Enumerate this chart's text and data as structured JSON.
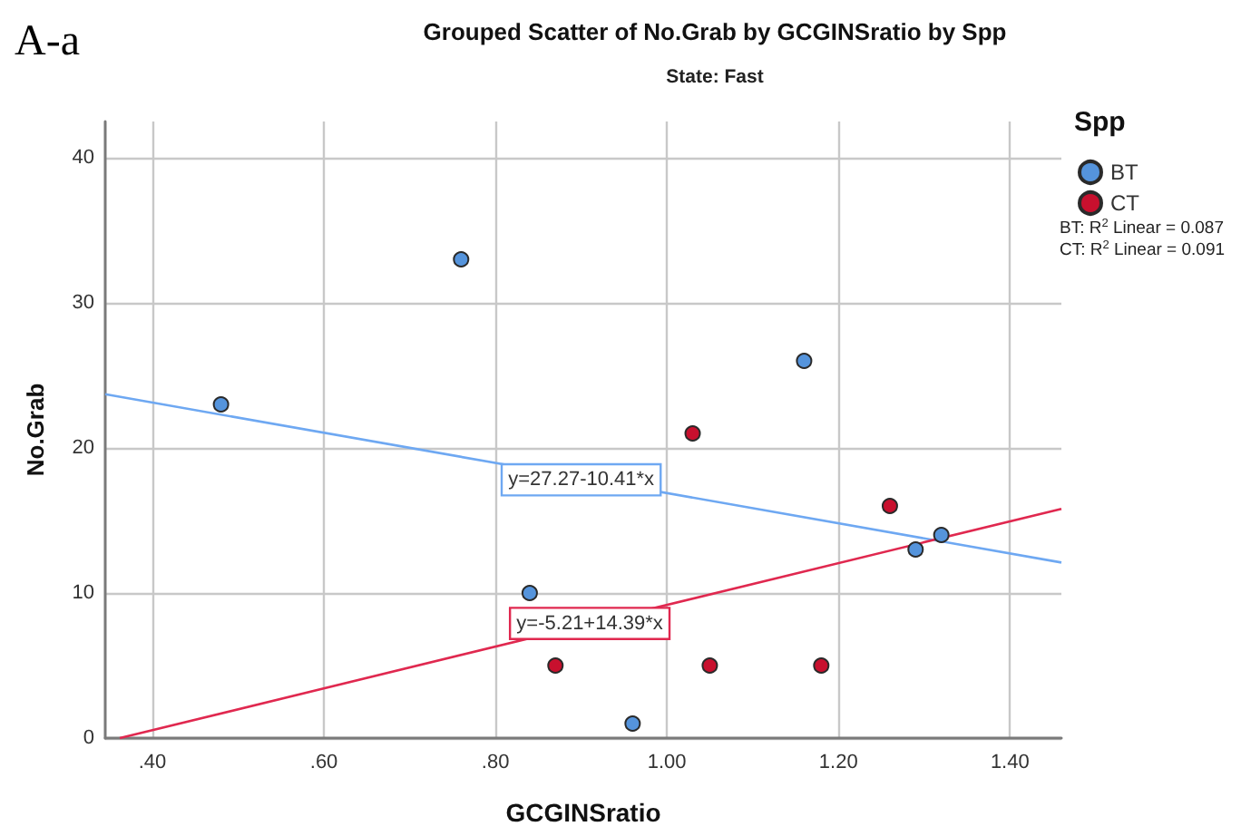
{
  "chart_data": {
    "type": "scatter",
    "title": "Grouped Scatter of No.Grab by GCGINSratio by Spp",
    "subtitle": "State: Fast",
    "xlabel": "GCGINSratio",
    "ylabel": "No.Grab",
    "legend_title": "Spp",
    "series": [
      {
        "name": "BT",
        "color": "#5594dc",
        "x": [
          0.48,
          0.76,
          0.84,
          0.96,
          1.16,
          1.29,
          1.32
        ],
        "values": [
          23,
          33,
          10,
          1,
          26,
          13,
          14
        ]
      },
      {
        "name": "CT",
        "color": "#c8102e",
        "x": [
          0.87,
          1.03,
          1.05,
          1.18,
          1.26
        ],
        "values": [
          5,
          21,
          5,
          5,
          16
        ]
      },
      {
        "type": "line",
        "marker": "none",
        "color": "#6ea8f2",
        "x": [
          0.345,
          1.46
        ],
        "values": [
          23.7,
          12.1
        ]
      },
      {
        "type": "line",
        "marker": "none",
        "color": "#e0284f",
        "x": [
          0.362,
          1.46
        ],
        "values": [
          0,
          15.8
        ]
      }
    ],
    "xlim": [
      0.345,
      1.46
    ],
    "xticks": [
      {
        "value": 0.4,
        "label": ".40"
      },
      {
        "value": 0.6,
        "label": ".60"
      },
      {
        "value": 0.8,
        "label": ".80"
      },
      {
        "value": 1,
        "label": "1.00"
      },
      {
        "value": 1.2,
        "label": "1.20"
      },
      {
        "value": 1.4,
        "label": "1.40"
      }
    ],
    "ylim": [
      0,
      42.5
    ],
    "yticks": [
      0,
      10,
      20,
      30,
      40
    ],
    "grid": true,
    "legend": "top right",
    "marker": "circle",
    "line_style": "solid",
    "annotations": [
      "A-a",
      "BT: R$^{2}$ Linear = 0.087",
      "CT: R$^{2}$ Linear = 0.091",
      {
        "text": "y=27.27-10.41*x",
        "x": 0.9,
        "y": 17.8
      },
      {
        "text": "y=-5.21+14.39*x",
        "x": 0.91,
        "y": 7.9
      }
    ]
  }
}
